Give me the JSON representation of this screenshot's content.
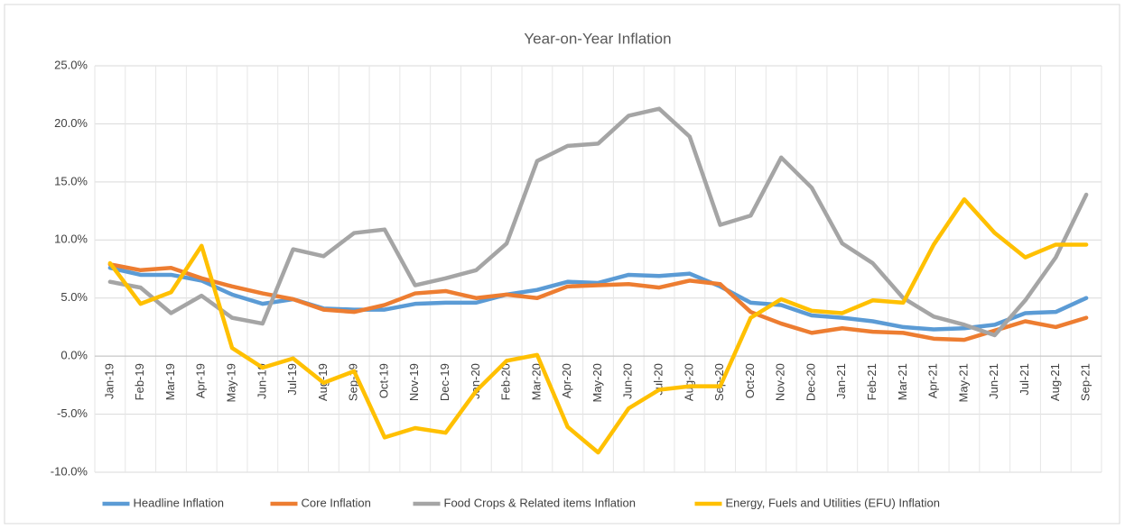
{
  "chart_data": {
    "type": "line",
    "title": "Year-on-Year Inflation",
    "categories": [
      "Jan-19",
      "Feb-19",
      "Mar-19",
      "Apr-19",
      "May-19",
      "Jun-19",
      "Jul-19",
      "Aug-19",
      "Sep-19",
      "Oct-19",
      "Nov-19",
      "Dec-19",
      "Jan-20",
      "Feb-20",
      "Mar-20",
      "Apr-20",
      "May-20",
      "Jun-20",
      "Jul-20",
      "Aug-20",
      "Sep-20",
      "Oct-20",
      "Nov-20",
      "Dec-20",
      "Jan-21",
      "Feb-21",
      "Mar-21",
      "Apr-21",
      "May-21",
      "Jun-21",
      "Jul-21",
      "Aug-21",
      "Sep-21"
    ],
    "series": [
      {
        "name": "Headline Inflation",
        "color": "#5b9bd5",
        "values": [
          7.6,
          7.0,
          7.0,
          6.5,
          5.3,
          4.5,
          4.9,
          4.1,
          4.0,
          4.0,
          4.5,
          4.6,
          4.6,
          5.3,
          5.7,
          6.4,
          6.3,
          7.0,
          6.9,
          7.1,
          6.0,
          4.6,
          4.4,
          3.5,
          3.3,
          3.0,
          2.5,
          2.3,
          2.4,
          2.7,
          3.7,
          3.8,
          5.0
        ]
      },
      {
        "name": "Core Inflation",
        "color": "#ed7d31",
        "values": [
          7.9,
          7.4,
          7.6,
          6.7,
          6.0,
          5.4,
          4.9,
          4.0,
          3.8,
          4.4,
          5.4,
          5.6,
          5.0,
          5.3,
          5.0,
          6.0,
          6.1,
          6.2,
          5.9,
          6.5,
          6.2,
          3.8,
          2.8,
          2.0,
          2.4,
          2.1,
          2.0,
          1.5,
          1.4,
          2.2,
          3.0,
          2.5,
          3.3
        ]
      },
      {
        "name": "Food Crops & Related items Inflation",
        "color": "#a5a5a5",
        "values": [
          6.4,
          5.9,
          3.7,
          5.2,
          3.3,
          2.8,
          9.2,
          8.6,
          10.6,
          10.9,
          6.1,
          6.7,
          7.4,
          9.7,
          16.8,
          18.1,
          18.3,
          20.7,
          21.3,
          18.9,
          11.3,
          12.1,
          17.1,
          14.5,
          9.7,
          8.0,
          5.0,
          3.4,
          2.7,
          1.8,
          4.8,
          8.5,
          13.9
        ]
      },
      {
        "name": "Energy, Fuels and Utilities (EFU) Inflation",
        "color": "#ffc000",
        "values": [
          8.0,
          4.5,
          5.5,
          9.5,
          0.7,
          -1.0,
          -0.2,
          -2.3,
          -1.3,
          -7.0,
          -6.2,
          -6.6,
          -3.0,
          -0.4,
          0.1,
          -6.1,
          -8.3,
          -4.5,
          -2.9,
          -2.6,
          -2.6,
          3.3,
          4.9,
          3.9,
          3.7,
          4.8,
          4.6,
          9.6,
          13.5,
          10.6,
          8.5,
          9.6,
          9.6
        ]
      }
    ],
    "ylim": [
      -10,
      25
    ],
    "yticks": [
      {
        "value": -10,
        "label": "-10.0%"
      },
      {
        "value": -5,
        "label": "-5.0%"
      },
      {
        "value": 0,
        "label": "0.0%"
      },
      {
        "value": 5,
        "label": "5.0%"
      },
      {
        "value": 10,
        "label": "10.0%"
      },
      {
        "value": 15,
        "label": "15.0%"
      },
      {
        "value": 20,
        "label": "20.0%"
      },
      {
        "value": 25,
        "label": "25.0%"
      }
    ],
    "grid": true,
    "legend": "bottom"
  }
}
